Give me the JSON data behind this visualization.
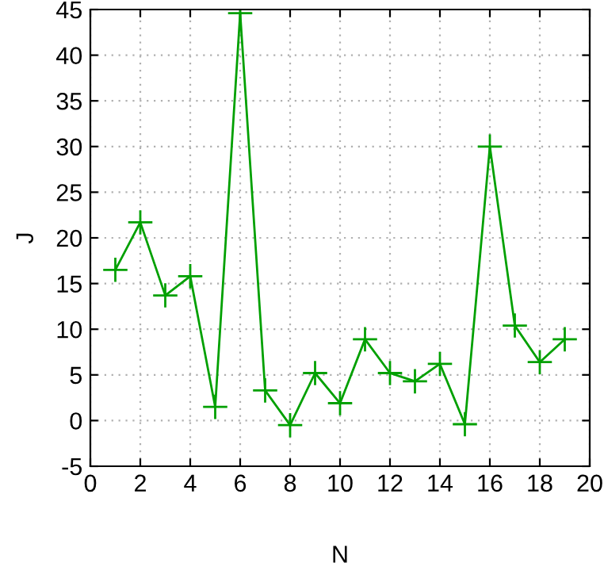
{
  "chart_data": {
    "type": "line",
    "xlabel": "N",
    "ylabel": "J",
    "x": [
      1,
      2,
      3,
      4,
      5,
      6,
      7,
      8,
      9,
      10,
      11,
      12,
      13,
      14,
      15,
      16,
      17,
      18,
      19
    ],
    "series": [
      {
        "color": "#00a000",
        "values": [
          16.5,
          21.7,
          13.7,
          15.8,
          1.5,
          44.6,
          3.3,
          -0.5,
          5.2,
          1.9,
          8.9,
          5.2,
          4.3,
          6.2,
          -0.4,
          30.0,
          10.4,
          6.4,
          8.9
        ]
      }
    ],
    "xlim": [
      0,
      20
    ],
    "xticks": [
      0,
      2,
      4,
      6,
      8,
      10,
      12,
      14,
      16,
      18,
      20
    ],
    "ylim": [
      -5,
      45
    ],
    "yticks": [
      -5,
      0,
      5,
      10,
      15,
      20,
      25,
      30,
      35,
      40,
      45
    ],
    "grid": true,
    "marker": "cross",
    "line_style": "solid",
    "legend": false
  }
}
